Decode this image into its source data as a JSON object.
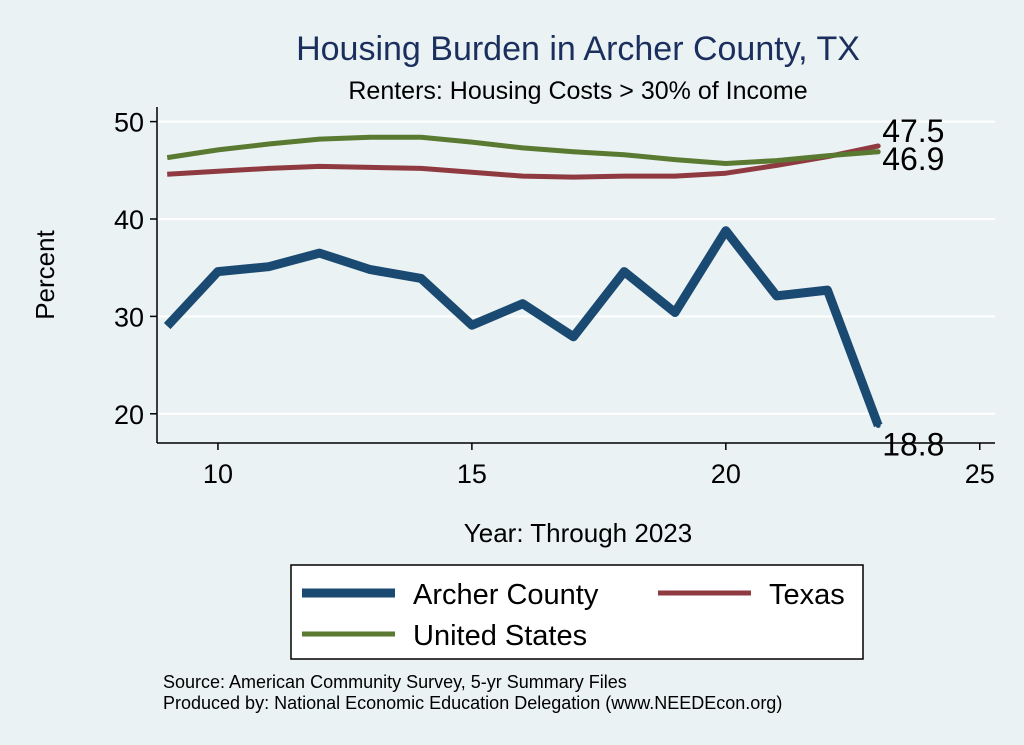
{
  "chart_data": {
    "type": "line",
    "title": "Housing Burden in Archer County, TX",
    "subtitle": "Renters: Housing Costs > 30% of Income",
    "xlabel": "Year: Through 2023",
    "ylabel": "Percent",
    "xlim": [
      8.8,
      25.3
    ],
    "ylim": [
      17.0,
      51.5
    ],
    "x_ticks": [
      10,
      15,
      20,
      25
    ],
    "y_ticks": [
      20,
      30,
      40,
      50
    ],
    "grid": true,
    "series": [
      {
        "name": "Archer County",
        "color": "#1a4a72",
        "x": [
          9,
          10,
          11,
          12,
          13,
          14,
          15,
          16,
          17,
          18,
          19,
          20,
          21,
          22,
          23
        ],
        "values": [
          29.0,
          34.6,
          35.1,
          36.5,
          34.8,
          33.9,
          29.1,
          31.3,
          27.9,
          34.6,
          30.4,
          38.8,
          32.1,
          32.7,
          18.8
        ],
        "end_label": "18.8"
      },
      {
        "name": "Texas",
        "color": "#8f3a40",
        "x": [
          9,
          10,
          11,
          12,
          13,
          14,
          15,
          16,
          17,
          18,
          19,
          20,
          21,
          22,
          23
        ],
        "values": [
          44.6,
          44.9,
          45.2,
          45.4,
          45.3,
          45.2,
          44.8,
          44.4,
          44.3,
          44.4,
          44.4,
          44.7,
          45.5,
          46.4,
          47.5
        ],
        "end_label": "47.5"
      },
      {
        "name": "United States",
        "color": "#5a7a32",
        "x": [
          9,
          10,
          11,
          12,
          13,
          14,
          15,
          16,
          17,
          18,
          19,
          20,
          21,
          22,
          23
        ],
        "values": [
          46.3,
          47.1,
          47.7,
          48.2,
          48.4,
          48.4,
          47.9,
          47.3,
          46.9,
          46.6,
          46.1,
          45.7,
          46.0,
          46.5,
          46.9
        ],
        "end_label": "46.9"
      }
    ],
    "legend": {
      "position": "bottom",
      "order": [
        "Archer County",
        "Texas",
        "United States"
      ]
    },
    "source_lines": [
      "Source: American Community Survey, 5-yr Summary Files",
      "Produced by: National Economic Education Delegation (www.NEEDEcon.org)"
    ]
  }
}
